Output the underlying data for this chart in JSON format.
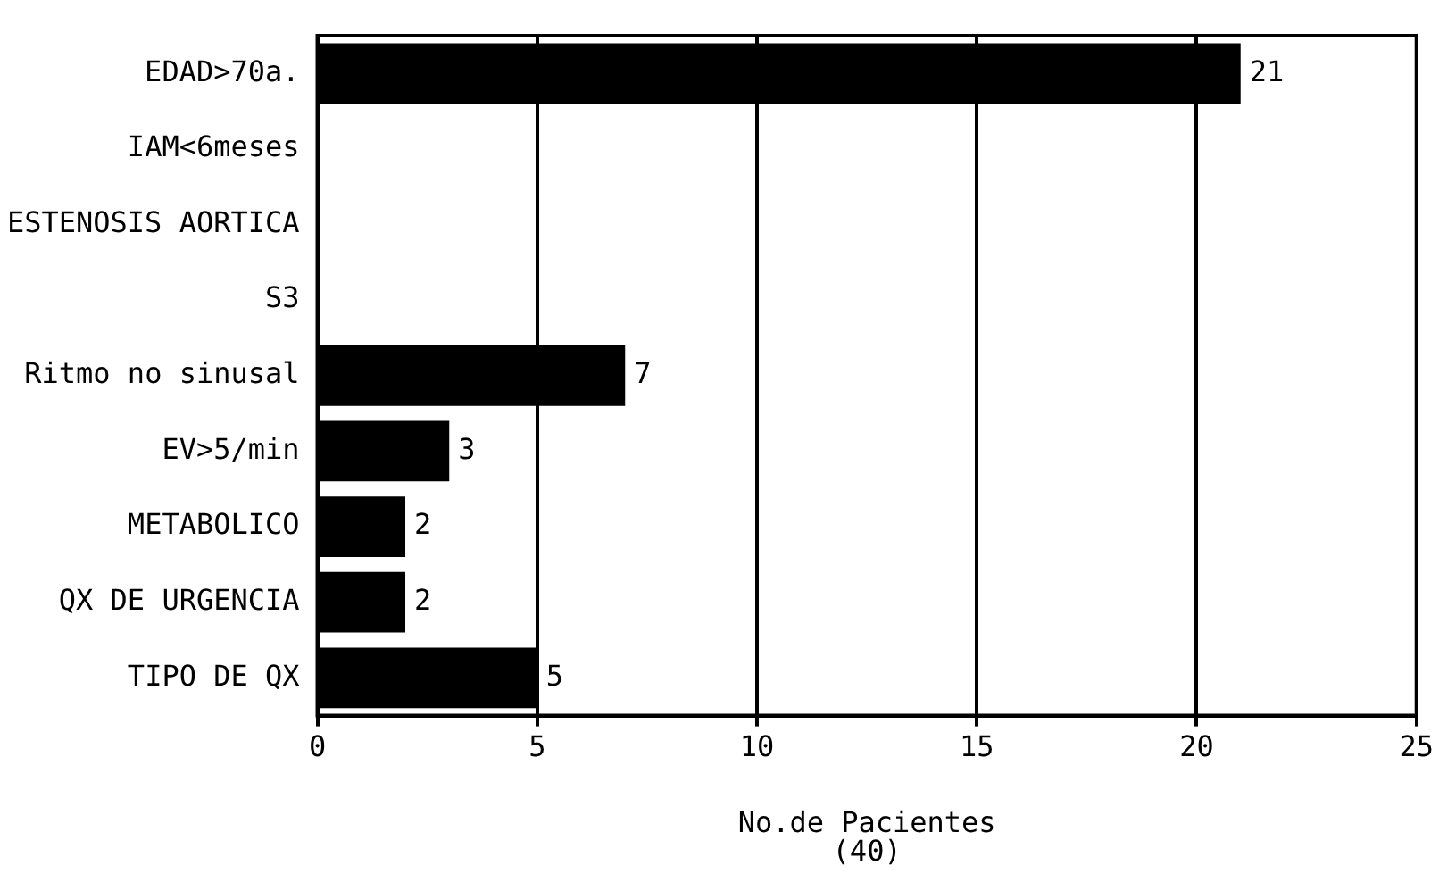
{
  "chart_data": {
    "type": "bar",
    "orientation": "horizontal",
    "categories": [
      "EDAD>70a.",
      "IAM<6meses",
      "ESTENOSIS AORTICA",
      "S3",
      "Ritmo no sinusal",
      "EV>5/min",
      "METABOLICO",
      "QX DE URGENCIA",
      "TIPO DE QX"
    ],
    "values": [
      21,
      0,
      0,
      0,
      7,
      3,
      2,
      2,
      5
    ],
    "value_labels": [
      "21",
      null,
      null,
      null,
      "7",
      "3",
      "2",
      "2",
      "5"
    ],
    "color": "#000000",
    "xlabel": "No.de Pacientes\n(40)",
    "xlim": [
      0,
      25
    ],
    "xticks": [
      0,
      5,
      10,
      15,
      20,
      25
    ],
    "grid": "x"
  }
}
